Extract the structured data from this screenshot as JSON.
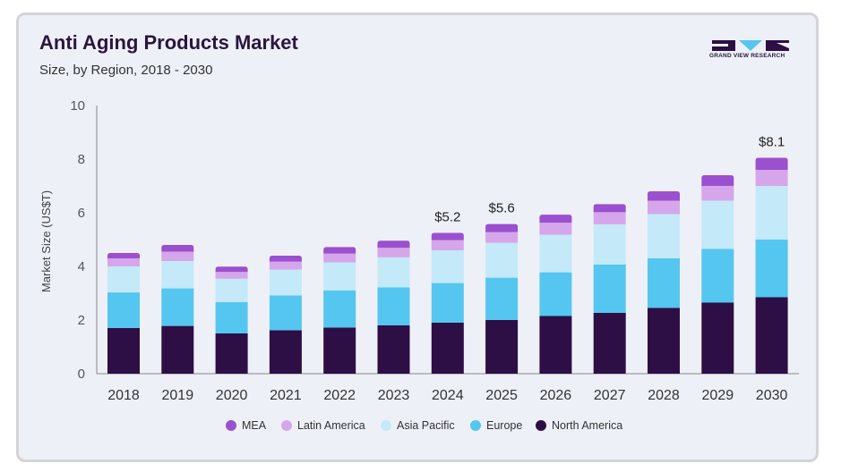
{
  "header": {
    "title": "Anti Aging Products Market",
    "subtitle": "Size, by Region, 2018 - 2030",
    "logo_text": "GRAND VIEW RESEARCH"
  },
  "colors": {
    "North America": "#2d0e45",
    "Europe": "#55c6f0",
    "Asia Pacific": "#c4e9f8",
    "Latin America": "#d6a6ea",
    "MEA": "#9b50cf"
  },
  "chart_data": {
    "type": "bar",
    "stacked": true,
    "title": "Anti Aging Products Market",
    "subtitle": "Size, by Region, 2018 - 2030",
    "xlabel": "",
    "ylabel": "Market Size (US$T)",
    "ylim": [
      0,
      10
    ],
    "yticks": [
      0,
      2,
      4,
      6,
      8,
      10
    ],
    "grid": false,
    "legend_position": "bottom",
    "categories": [
      "2018",
      "2019",
      "2020",
      "2021",
      "2022",
      "2023",
      "2024",
      "2025",
      "2026",
      "2027",
      "2028",
      "2029",
      "2030"
    ],
    "series": [
      {
        "name": "North America",
        "values": [
          1.7,
          1.78,
          1.5,
          1.62,
          1.72,
          1.8,
          1.9,
          2.0,
          2.15,
          2.27,
          2.45,
          2.65,
          2.85
        ]
      },
      {
        "name": "Europe",
        "values": [
          1.33,
          1.4,
          1.17,
          1.3,
          1.38,
          1.42,
          1.48,
          1.58,
          1.63,
          1.8,
          1.85,
          2.0,
          2.15
        ]
      },
      {
        "name": "Asia Pacific",
        "values": [
          0.97,
          1.02,
          0.87,
          0.96,
          1.05,
          1.12,
          1.22,
          1.3,
          1.4,
          1.5,
          1.65,
          1.8,
          2.0
        ]
      },
      {
        "name": "Latin America",
        "values": [
          0.3,
          0.35,
          0.25,
          0.3,
          0.33,
          0.35,
          0.38,
          0.4,
          0.45,
          0.45,
          0.5,
          0.55,
          0.6
        ]
      },
      {
        "name": "MEA",
        "values": [
          0.2,
          0.25,
          0.2,
          0.22,
          0.24,
          0.27,
          0.27,
          0.3,
          0.3,
          0.3,
          0.35,
          0.4,
          0.45
        ]
      }
    ],
    "annotations": [
      {
        "category": "2024",
        "label": "$5.2",
        "value": 5.25
      },
      {
        "category": "2025",
        "label": "$5.6",
        "value": 5.58
      },
      {
        "category": "2030",
        "label": "$8.1",
        "value": 8.05
      }
    ],
    "legend_order": [
      "MEA",
      "Latin America",
      "Asia Pacific",
      "Europe",
      "North America"
    ]
  }
}
